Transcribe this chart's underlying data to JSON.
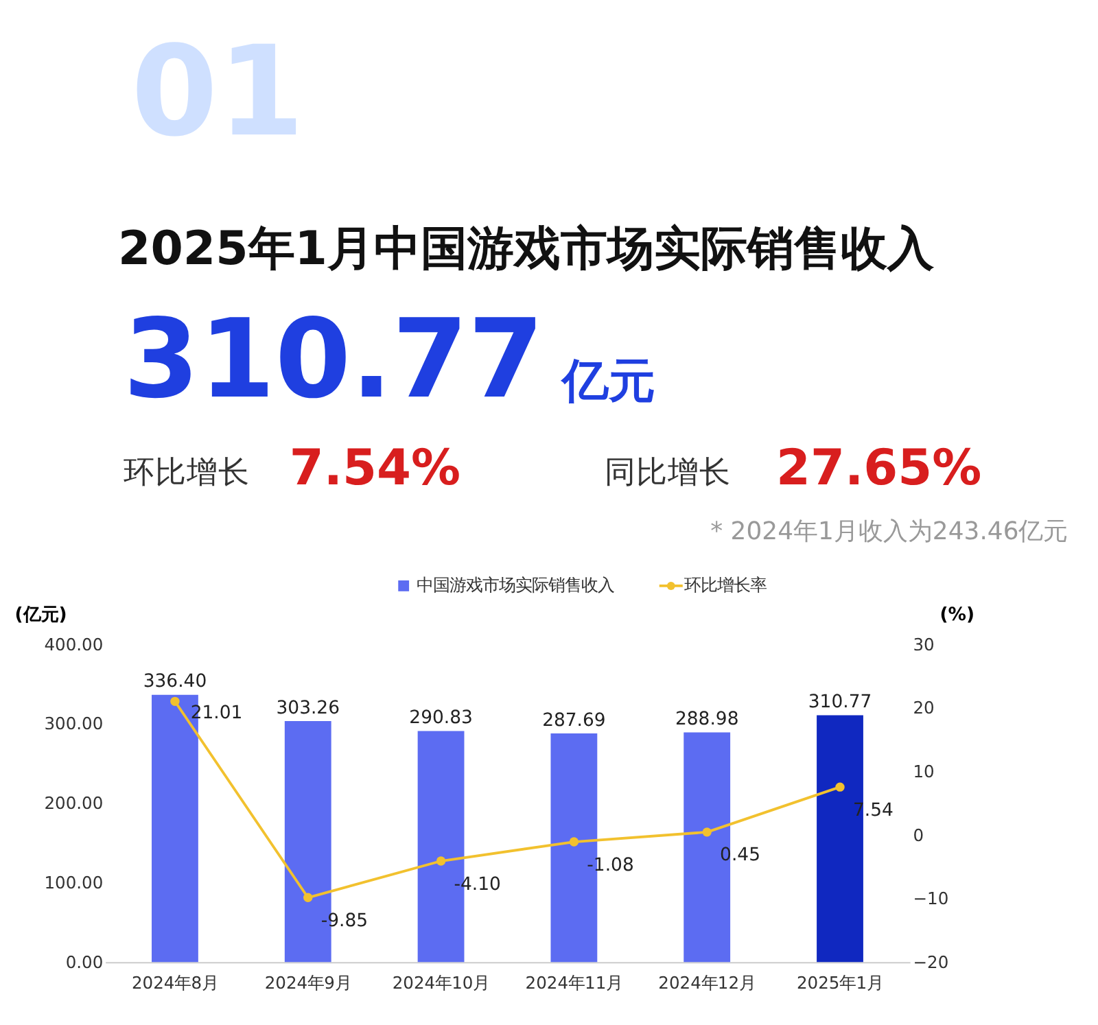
{
  "chart_data": {
    "type": "bar",
    "title": "2025年1月中国游戏市场实际销售收入",
    "annotations": [
      "01",
      "310.77",
      "亿元",
      "环比增长",
      "7.54%",
      "同比增长",
      "27.65%",
      "* 2024年1月收入为243.46亿元"
    ],
    "categories": [
      "2024年8月",
      "2024年9月",
      "2024年10月",
      "2024年11月",
      "2024年12月",
      "2025年1月"
    ],
    "series": [
      {
        "name": "中国游戏市场实际销售收入",
        "color": "#5c6cf2",
        "colors": [
          "#5c6cf2",
          "#5c6cf2",
          "#5c6cf2",
          "#5c6cf2",
          "#5c6cf2",
          "#1028c0"
        ],
        "values": [
          336.4,
          303.26,
          290.83,
          287.69,
          288.98,
          310.77
        ],
        "value_labels": [
          "336.40",
          "303.26",
          "290.83",
          "287.69",
          "288.98",
          "310.77"
        ]
      },
      {
        "name": "环比增长率",
        "type": "line",
        "axis": "y2",
        "color": "#f2c12e",
        "values": [
          21.01,
          -9.85,
          -4.1,
          -1.08,
          0.45,
          7.54
        ],
        "value_labels": [
          "21.01",
          "-9.85",
          "-4.10",
          "-1.08",
          "0.45",
          "7.54"
        ]
      }
    ],
    "ylabel": "(亿元)",
    "y2label": "(%)",
    "ylim": [
      0,
      400
    ],
    "yticks": [
      {
        "value": 0,
        "label": "0.00"
      },
      {
        "value": 100,
        "label": "100.00"
      },
      {
        "value": 200,
        "label": "200.00"
      },
      {
        "value": 300,
        "label": "300.00"
      },
      {
        "value": 400,
        "label": "400.00"
      }
    ],
    "y2lim": [
      -20,
      30
    ],
    "y2ticks": [
      -20,
      -10,
      0,
      10,
      20,
      30
    ],
    "marker": "circle",
    "line_style": "solid",
    "legend": "top",
    "grid": false
  }
}
